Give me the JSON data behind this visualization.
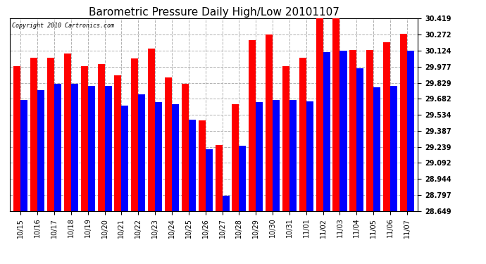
{
  "title": "Barometric Pressure Daily High/Low 20101107",
  "copyright": "Copyright 2010 Cartronics.com",
  "dates": [
    "10/15",
    "10/16",
    "10/17",
    "10/18",
    "10/19",
    "10/20",
    "10/21",
    "10/22",
    "10/23",
    "10/24",
    "10/25",
    "10/26",
    "10/27",
    "10/28",
    "10/29",
    "10/30",
    "10/31",
    "11/01",
    "11/02",
    "11/03",
    "11/04",
    "11/05",
    "11/06",
    "11/07"
  ],
  "highs": [
    29.98,
    30.06,
    30.06,
    30.1,
    29.98,
    30.0,
    29.9,
    30.05,
    30.14,
    29.88,
    29.82,
    29.48,
    29.26,
    29.63,
    30.22,
    30.27,
    29.98,
    30.06,
    30.42,
    30.42,
    30.13,
    30.13,
    30.2,
    30.28
  ],
  "lows": [
    29.67,
    29.76,
    29.82,
    29.82,
    29.8,
    29.8,
    29.62,
    29.72,
    29.65,
    29.63,
    29.49,
    29.22,
    28.79,
    29.25,
    29.65,
    29.67,
    29.67,
    29.66,
    30.11,
    30.12,
    29.96,
    29.79,
    29.8,
    30.124
  ],
  "y_ticks": [
    28.649,
    28.797,
    28.944,
    29.092,
    29.239,
    29.387,
    29.534,
    29.682,
    29.829,
    29.977,
    30.124,
    30.272,
    30.419
  ],
  "y_min": 28.649,
  "y_max": 30.419,
  "bar_width": 0.42,
  "high_color": "#ff0000",
  "low_color": "#0000ff",
  "bg_color": "#ffffff",
  "grid_color": "#b0b0b0",
  "title_fontsize": 11,
  "tick_fontsize": 7
}
